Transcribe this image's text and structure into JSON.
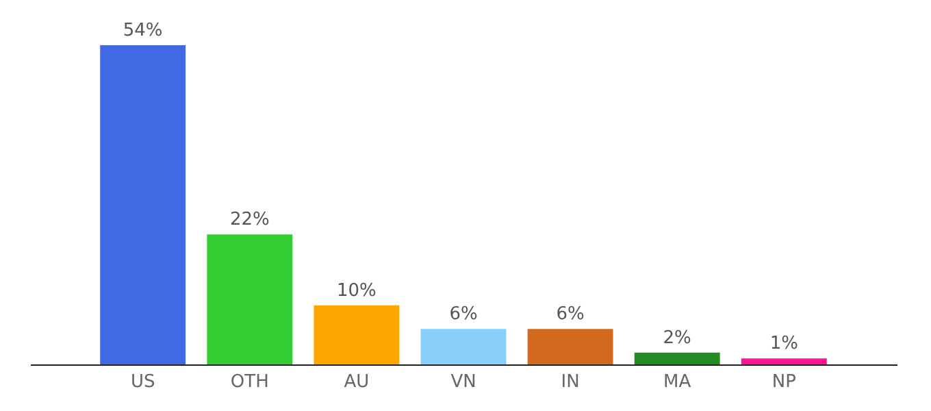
{
  "chart_data": {
    "type": "bar",
    "categories": [
      "US",
      "OTH",
      "AU",
      "VN",
      "IN",
      "MA",
      "NP"
    ],
    "values": [
      54,
      22,
      10,
      6,
      6,
      2,
      1
    ],
    "colors": [
      "#4169e1",
      "#32cd32",
      "#ffa500",
      "#87cefa",
      "#d2691e",
      "#228b22",
      "#ff1493"
    ],
    "value_labels": [
      "54%",
      "22%",
      "10%",
      "6%",
      "6%",
      "2%",
      "1%"
    ]
  }
}
